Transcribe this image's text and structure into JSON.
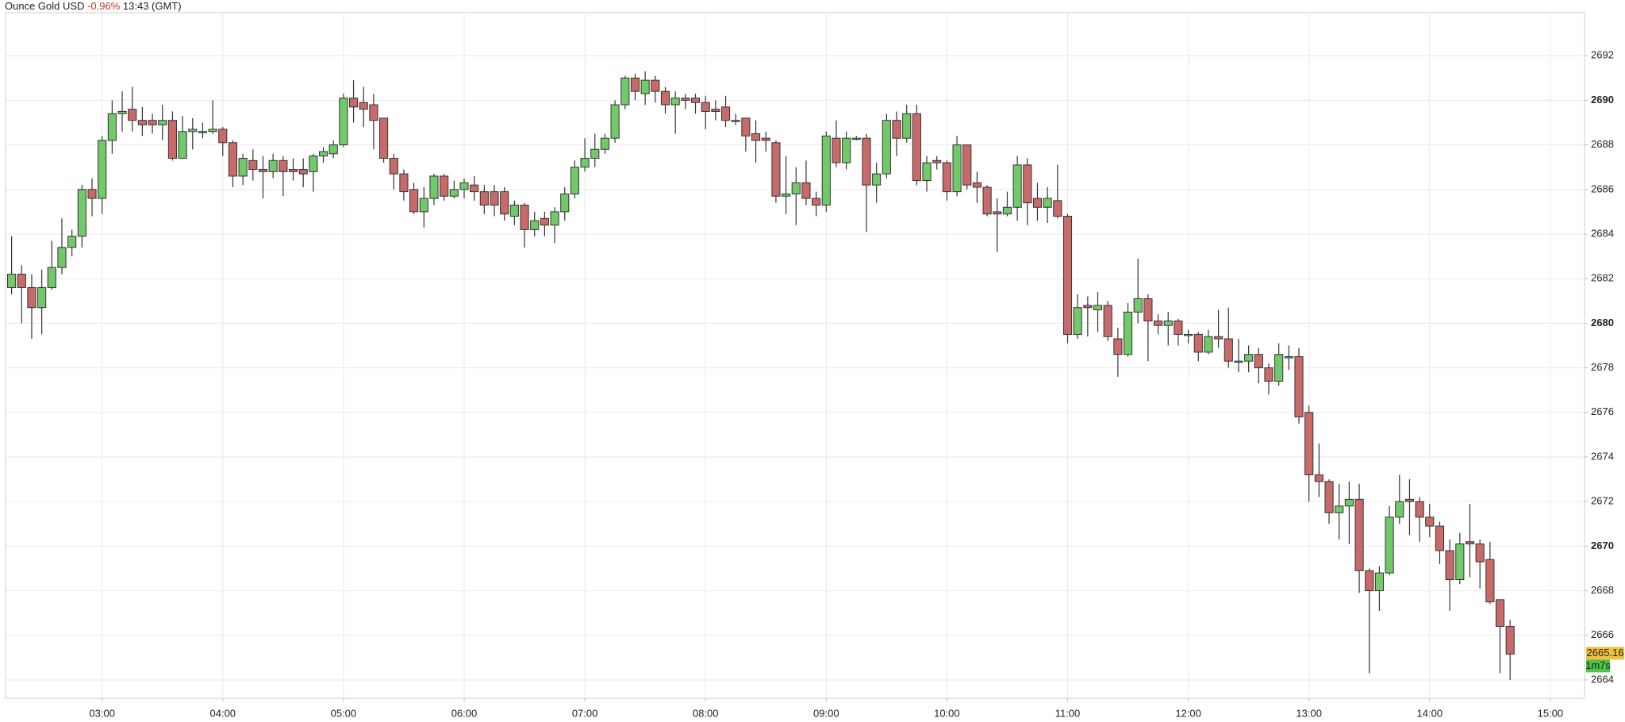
{
  "chart_data": {
    "type": "candlestick",
    "title": "Ounce Gold USD",
    "change": "-0.96%",
    "time": "13:43 (GMT)",
    "x": [
      "02:15",
      "02:20",
      "02:25",
      "02:30",
      "02:35",
      "02:40",
      "02:45",
      "02:50",
      "02:55",
      "03:00",
      "03:05",
      "03:10",
      "03:15",
      "03:20",
      "03:25",
      "03:30",
      "03:35",
      "03:40",
      "03:45",
      "03:50",
      "03:55",
      "04:00",
      "04:05",
      "04:10",
      "04:15",
      "04:20",
      "04:25",
      "04:30",
      "04:35",
      "04:40",
      "04:45",
      "04:50",
      "04:55",
      "05:00",
      "05:05",
      "05:10",
      "05:15",
      "05:20",
      "05:25",
      "05:30",
      "05:35",
      "05:40",
      "05:45",
      "05:50",
      "05:55",
      "06:00",
      "06:05",
      "06:10",
      "06:15",
      "06:20",
      "06:25",
      "06:30",
      "06:35",
      "06:40",
      "06:45",
      "06:50",
      "06:55",
      "07:00",
      "07:05",
      "07:10",
      "07:15",
      "07:20",
      "07:25",
      "07:30",
      "07:35",
      "07:40",
      "07:45",
      "07:50",
      "07:55",
      "08:00",
      "08:05",
      "08:10",
      "08:15",
      "08:20",
      "08:25",
      "08:30",
      "08:35",
      "08:40",
      "08:45",
      "08:50",
      "08:55",
      "09:00",
      "09:05",
      "09:10",
      "09:15",
      "09:20",
      "09:25",
      "09:30",
      "09:35",
      "09:40",
      "09:45",
      "09:50",
      "09:55",
      "10:00",
      "10:05",
      "10:10",
      "10:15",
      "10:20",
      "10:25",
      "10:30",
      "10:35",
      "10:40",
      "10:45",
      "10:50",
      "10:55",
      "11:00",
      "11:05",
      "11:10",
      "11:15",
      "11:20",
      "11:25",
      "11:30",
      "11:35",
      "11:40",
      "11:45",
      "11:50",
      "11:55",
      "12:00",
      "12:05",
      "12:10",
      "12:15",
      "12:20",
      "12:25",
      "12:30",
      "12:35",
      "12:40",
      "12:45",
      "12:50",
      "12:55",
      "13:00",
      "13:05",
      "13:10",
      "13:15",
      "13:20",
      "13:25",
      "13:30",
      "13:35",
      "13:40",
      "13:45",
      "13:50",
      "13:55",
      "14:00",
      "14:05",
      "14:10",
      "14:15",
      "14:20",
      "14:25",
      "14:30",
      "14:35",
      "14:40"
    ],
    "open": [
      2681.6,
      2682.2,
      2681.6,
      2680.7,
      2681.6,
      2682.5,
      2683.4,
      2683.9,
      2686.0,
      2685.6,
      2688.2,
      2689.4,
      2689.6,
      2689.1,
      2689.1,
      2688.9,
      2689.1,
      2687.4,
      2688.6,
      2688.6,
      2688.6,
      2688.7,
      2688.1,
      2686.6,
      2687.3,
      2686.9,
      2686.8,
      2687.3,
      2686.9,
      2686.9,
      2686.8,
      2687.5,
      2687.6,
      2688.0,
      2690.1,
      2689.9,
      2689.8,
      2689.2,
      2687.4,
      2686.7,
      2686.0,
      2685.0,
      2685.6,
      2686.6,
      2685.7,
      2686.0,
      2686.2,
      2685.9,
      2685.9,
      2685.9,
      2684.8,
      2685.3,
      2684.2,
      2684.7,
      2684.4,
      2685.0,
      2685.8,
      2687.0,
      2687.4,
      2687.8,
      2688.3,
      2689.8,
      2691.0,
      2690.3,
      2690.9,
      2690.4,
      2689.8,
      2690.1,
      2690.1,
      2689.9,
      2689.6,
      2689.7,
      2689.1,
      2689.2,
      2688.5,
      2688.3,
      2688.1,
      2685.7,
      2685.8,
      2686.3,
      2685.6,
      2685.3,
      2688.3,
      2687.2,
      2688.3,
      2688.3,
      2686.2,
      2686.7,
      2689.1,
      2688.3,
      2689.4,
      2686.4,
      2687.3,
      2687.2,
      2685.9,
      2688.0,
      2686.3,
      2686.1,
      2685.0,
      2684.9,
      2685.2,
      2687.1,
      2685.6,
      2685.2,
      2685.5,
      2684.8,
      2679.5,
      2680.8,
      2680.6,
      2680.8,
      2679.3,
      2678.6,
      2680.5,
      2681.1,
      2680.1,
      2679.9,
      2680.1,
      2679.5,
      2679.5,
      2678.7,
      2679.4,
      2679.3,
      2678.3,
      2678.3,
      2678.6,
      2678.0,
      2677.4,
      2678.5,
      2678.5,
      2676.0,
      2673.2,
      2672.9,
      2671.5,
      2671.8,
      2672.1,
      2668.9,
      2668.0,
      2668.8,
      2671.3,
      2672.1,
      2672.0,
      2671.3,
      2670.9,
      2669.8,
      2668.5,
      2670.2,
      2670.1,
      2669.4,
      2667.6,
      2666.4
    ],
    "high": [
      2683.9,
      2682.6,
      2682.2,
      2682.4,
      2683.7,
      2684.7,
      2684.2,
      2686.2,
      2686.5,
      2688.4,
      2690.0,
      2690.4,
      2690.6,
      2689.7,
      2689.4,
      2689.8,
      2689.5,
      2689.3,
      2689.2,
      2689.0,
      2690.0,
      2688.8,
      2688.2,
      2687.6,
      2687.8,
      2687.5,
      2687.6,
      2687.5,
      2687.4,
      2687.4,
      2687.6,
      2687.9,
      2688.2,
      2690.3,
      2690.9,
      2690.6,
      2690.3,
      2689.2,
      2687.6,
      2686.9,
      2686.3,
      2686.1,
      2686.7,
      2686.7,
      2686.4,
      2686.5,
      2686.6,
      2686.2,
      2686.2,
      2686.1,
      2685.5,
      2685.4,
      2685.0,
      2685.0,
      2685.2,
      2686.1,
      2687.3,
      2688.3,
      2688.5,
      2688.5,
      2690.0,
      2691.1,
      2691.2,
      2691.3,
      2691.1,
      2690.6,
      2690.4,
      2690.3,
      2690.3,
      2690.2,
      2690.0,
      2690.2,
      2689.4,
      2689.2,
      2689.1,
      2688.6,
      2688.2,
      2687.5,
      2687.0,
      2687.3,
      2685.9,
      2688.6,
      2689.1,
      2688.6,
      2688.4,
      2688.5,
      2687.2,
      2689.4,
      2689.5,
      2689.8,
      2689.8,
      2687.5,
      2687.5,
      2687.3,
      2688.4,
      2688.0,
      2686.8,
      2686.2,
      2685.6,
      2685.9,
      2687.5,
      2687.4,
      2686.3,
      2686.1,
      2687.1,
      2684.9,
      2681.3,
      2681.2,
      2681.4,
      2681.0,
      2679.8,
      2680.9,
      2682.9,
      2681.3,
      2680.4,
      2680.5,
      2680.2,
      2679.7,
      2679.6,
      2679.7,
      2680.6,
      2680.7,
      2679.3,
      2679.0,
      2678.9,
      2678.2,
      2679.1,
      2679.0,
      2678.9,
      2676.3,
      2674.6,
      2673.0,
      2672.8,
      2672.9,
      2672.8,
      2669.0,
      2669.1,
      2671.8,
      2673.2,
      2673.0,
      2672.2,
      2671.9,
      2671.1,
      2670.3,
      2670.6,
      2671.9,
      2670.3,
      2670.2,
      2667.6,
      2666.7
    ],
    "low": [
      2681.3,
      2680.0,
      2679.3,
      2679.5,
      2681.5,
      2682.2,
      2683.0,
      2683.4,
      2684.8,
      2684.9,
      2687.6,
      2688.6,
      2688.6,
      2688.4,
      2688.5,
      2688.2,
      2687.3,
      2687.5,
      2687.8,
      2688.3,
      2688.5,
      2687.5,
      2686.1,
      2686.2,
      2686.4,
      2685.6,
      2686.5,
      2685.7,
      2686.4,
      2686.1,
      2685.9,
      2687.2,
      2687.4,
      2687.9,
      2689.0,
      2688.8,
      2687.8,
      2687.2,
      2686.0,
      2685.5,
      2684.9,
      2684.3,
      2685.3,
      2685.5,
      2685.6,
      2685.6,
      2685.5,
      2684.9,
      2684.8,
      2684.6,
      2684.4,
      2683.4,
      2683.9,
      2683.9,
      2683.6,
      2684.6,
      2685.6,
      2686.8,
      2687.0,
      2687.6,
      2688.1,
      2689.6,
      2690.0,
      2689.8,
      2689.9,
      2689.4,
      2688.5,
      2689.6,
      2689.4,
      2688.7,
      2689.1,
      2688.8,
      2688.9,
      2687.7,
      2687.2,
      2687.7,
      2685.4,
      2684.9,
      2684.4,
      2685.3,
      2684.8,
      2685.0,
      2687.0,
      2686.9,
      2688.2,
      2684.1,
      2685.4,
      2686.5,
      2687.5,
      2688.1,
      2686.2,
      2685.9,
      2686.9,
      2685.5,
      2685.7,
      2686.0,
      2685.4,
      2684.8,
      2683.2,
      2684.8,
      2684.6,
      2684.4,
      2684.6,
      2684.5,
      2684.7,
      2679.1,
      2679.3,
      2679.4,
      2679.6,
      2679.2,
      2677.6,
      2678.5,
      2680.0,
      2678.3,
      2679.5,
      2679.0,
      2679.0,
      2679.1,
      2678.3,
      2678.6,
      2678.9,
      2678.0,
      2677.8,
      2677.8,
      2677.3,
      2676.8,
      2677.2,
      2677.9,
      2675.5,
      2672.0,
      2672.2,
      2671.0,
      2670.3,
      2670.1,
      2667.9,
      2664.3,
      2667.1,
      2668.7,
      2671.0,
      2670.5,
      2670.2,
      2670.4,
      2669.2,
      2667.1,
      2668.3,
      2668.6,
      2668.1,
      2667.4,
      2664.3,
      2664.0
    ],
    "close": [
      2682.2,
      2681.6,
      2680.7,
      2681.6,
      2682.5,
      2683.4,
      2683.9,
      2686.0,
      2685.6,
      2688.2,
      2689.4,
      2689.5,
      2689.1,
      2688.9,
      2688.9,
      2689.1,
      2687.4,
      2688.6,
      2688.7,
      2688.6,
      2688.7,
      2688.1,
      2686.6,
      2687.4,
      2686.9,
      2686.8,
      2687.3,
      2686.8,
      2686.8,
      2686.7,
      2687.5,
      2687.7,
      2688.0,
      2690.1,
      2689.7,
      2689.6,
      2689.1,
      2687.4,
      2686.7,
      2685.9,
      2685.0,
      2685.6,
      2686.6,
      2685.7,
      2686.0,
      2686.3,
      2685.9,
      2685.3,
      2685.3,
      2684.9,
      2685.3,
      2684.2,
      2684.6,
      2684.4,
      2685.0,
      2685.8,
      2687.0,
      2687.4,
      2687.8,
      2688.3,
      2689.8,
      2691.0,
      2690.4,
      2690.9,
      2690.4,
      2689.8,
      2690.1,
      2690.0,
      2689.9,
      2689.5,
      2689.5,
      2689.1,
      2689.1,
      2688.4,
      2688.2,
      2688.2,
      2685.7,
      2685.8,
      2686.3,
      2685.6,
      2685.3,
      2688.4,
      2687.2,
      2688.3,
      2688.3,
      2686.2,
      2686.7,
      2689.1,
      2688.3,
      2689.4,
      2686.4,
      2687.2,
      2687.2,
      2685.9,
      2688.0,
      2686.2,
      2686.1,
      2684.9,
      2684.9,
      2685.2,
      2687.1,
      2685.4,
      2685.2,
      2685.6,
      2684.8,
      2679.5,
      2680.7,
      2680.7,
      2680.8,
      2679.4,
      2678.6,
      2680.5,
      2681.1,
      2680.1,
      2679.9,
      2680.1,
      2679.5,
      2679.5,
      2678.7,
      2679.4,
      2679.3,
      2678.3,
      2678.3,
      2678.6,
      2678.0,
      2677.4,
      2678.6,
      2678.5,
      2675.8,
      2673.2,
      2672.9,
      2671.5,
      2671.8,
      2672.1,
      2668.9,
      2668.0,
      2668.8,
      2671.3,
      2672.0,
      2672.0,
      2671.3,
      2670.9,
      2669.8,
      2668.5,
      2670.1,
      2670.1,
      2669.3,
      2667.5,
      2666.4,
      2665.16
    ],
    "up_color": "#72c96a",
    "down_color": "#c96a6a",
    "last_price": 2665.16,
    "countdown": "1m7s",
    "xlim": [
      "02:12",
      "15:17"
    ],
    "xticks": [
      "03:00",
      "04:00",
      "05:00",
      "06:00",
      "07:00",
      "08:00",
      "09:00",
      "10:00",
      "11:00",
      "12:00",
      "13:00",
      "14:00",
      "15:00"
    ],
    "ylim": [
      2663.18,
      2693.93
    ],
    "yticks": [
      2664,
      2666,
      2668,
      2670,
      2672,
      2674,
      2676,
      2678,
      2680,
      2682,
      2684,
      2686,
      2688,
      2690,
      2692
    ],
    "grid": true
  }
}
